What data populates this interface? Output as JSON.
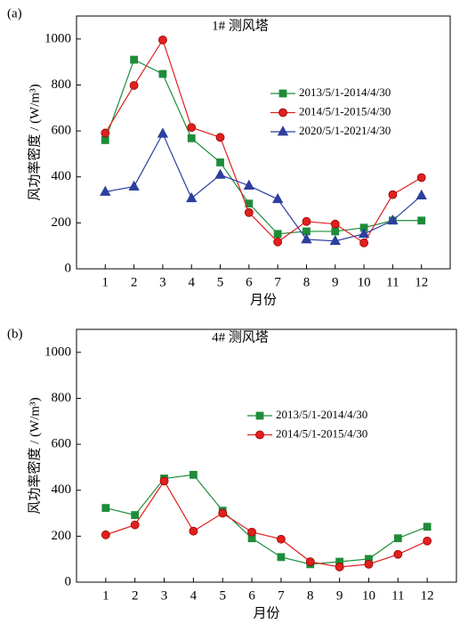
{
  "chart_data": [
    {
      "type": "line",
      "panel_label": "(a)",
      "title": "1# 测风塔",
      "x_label": "月份",
      "y_label": "风功率密度 / (W/m³)",
      "x": [
        1,
        2,
        3,
        4,
        5,
        6,
        7,
        8,
        9,
        10,
        11,
        12
      ],
      "xlim": [
        0,
        13
      ],
      "xticks": [
        1,
        2,
        3,
        4,
        5,
        6,
        7,
        8,
        9,
        10,
        11,
        12
      ],
      "ylim": [
        0,
        1100
      ],
      "yticks": [
        0,
        200,
        400,
        600,
        800,
        1000
      ],
      "series": [
        {
          "name": "2013/5/1-2014/4/30",
          "color": "#1e8c3a",
          "marker": "square",
          "values": [
            560,
            910,
            848,
            568,
            463,
            284,
            152,
            163,
            163,
            179,
            210,
            210
          ]
        },
        {
          "name": "2014/5/1-2015/4/30",
          "color": "#e0201e",
          "marker": "circle",
          "values": [
            591,
            798,
            996,
            615,
            572,
            245,
            117,
            206,
            195,
            113,
            323,
            397
          ]
        },
        {
          "name": "2020/5/1-2021/4/30",
          "color": "#2d3f9e",
          "marker": "triangle",
          "values": [
            335,
            358,
            588,
            307,
            409,
            362,
            303,
            128,
            121,
            152,
            210,
            319
          ]
        }
      ]
    },
    {
      "type": "line",
      "panel_label": "(b)",
      "title": "4# 测风塔",
      "x_label": "月份",
      "y_label": "风功率密度 / (W/m³)",
      "x": [
        1,
        2,
        3,
        4,
        5,
        6,
        7,
        8,
        9,
        10,
        11,
        12
      ],
      "xlim": [
        0,
        13
      ],
      "xticks": [
        1,
        2,
        3,
        4,
        5,
        6,
        7,
        8,
        9,
        10,
        11,
        12
      ],
      "ylim": [
        0,
        1100
      ],
      "yticks": [
        0,
        200,
        400,
        600,
        800,
        1000
      ],
      "series": [
        {
          "name": "2013/5/1-2014/4/30",
          "color": "#1e8c3a",
          "marker": "square",
          "values": [
            323,
            292,
            451,
            467,
            311,
            191,
            109,
            78,
            89,
            101,
            191,
            241
          ]
        },
        {
          "name": "2014/5/1-2015/4/30",
          "color": "#e0201e",
          "marker": "circle",
          "values": [
            206,
            249,
            440,
            222,
            300,
            218,
            187,
            89,
            66,
            78,
            121,
            179
          ]
        }
      ]
    }
  ]
}
